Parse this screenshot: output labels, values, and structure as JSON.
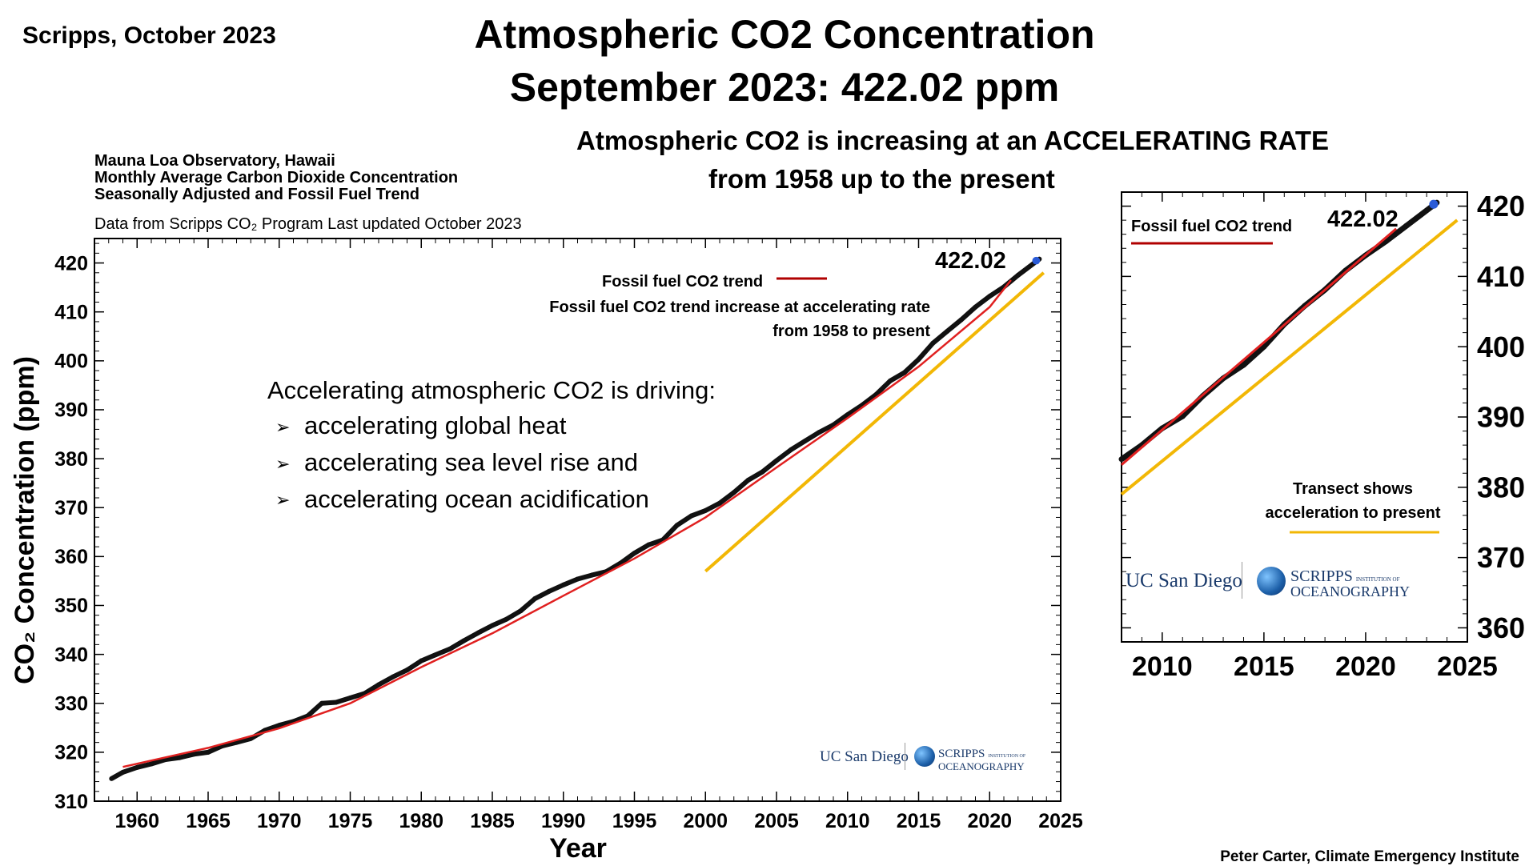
{
  "corner_label": "Scripps, October 2023",
  "title_line1": "Atmospheric CO2 Concentration",
  "title_line2": "September 2023: 422.02 ppm",
  "headline_line1": "Atmospheric CO2 is increasing at an ACCELERATING RATE",
  "headline_line2": "from 1958 up to the present",
  "chart_header": {
    "line1": "Mauna Loa Observatory, Hawaii",
    "line2": "Monthly Average Carbon Dioxide Concentration",
    "line3": "Seasonally Adjusted and Fossil Fuel Trend",
    "source": "Data from Scripps CO₂ Program   Last updated October 2023"
  },
  "credit": "Peter Carter, Climate Emergency Institute",
  "drivers": {
    "heading": "Accelerating atmospheric CO2 is driving:",
    "items": [
      "accelerating global heat",
      "accelerating sea level rise and",
      "accelerating ocean acidification"
    ]
  },
  "logos": {
    "ucsd": "UC San Diego",
    "scripps_line1": "SCRIPPS",
    "scripps_small": "INSTITUTION OF",
    "scripps_line2": "OCEANOGRAPHY"
  },
  "colors": {
    "measurements": "#111111",
    "fossil_trend": "#e02020",
    "transect": "#f2b705",
    "latest_point": "#2a5bd7",
    "legend_line": "#b00000"
  },
  "chart_data": [
    {
      "type": "line",
      "xlabel": "Year",
      "ylabel": "CO₂ Concentration (ppm)",
      "xlim": [
        1957,
        2025
      ],
      "ylim": [
        310,
        425
      ],
      "xticks": [
        1960,
        1965,
        1970,
        1975,
        1980,
        1985,
        1990,
        1995,
        2000,
        2005,
        2010,
        2015,
        2020,
        2025
      ],
      "yticks": [
        310,
        320,
        330,
        340,
        350,
        360,
        370,
        380,
        390,
        400,
        410,
        420
      ],
      "latest_label": "422.02",
      "legend": "Fossil fuel CO2 trend",
      "annotation_line1": "Fossil fuel CO2 trend increase at accelerating rate",
      "annotation_line2": "from 1958 to present",
      "series": [
        {
          "x": [
            1958.2,
            1959,
            1960,
            1961,
            1962,
            1963,
            1964,
            1965,
            1966,
            1967,
            1968,
            1969,
            1970,
            1971,
            1972,
            1973,
            1974,
            1975,
            1976,
            1977,
            1978,
            1979,
            1980,
            1981,
            1982,
            1983,
            1984,
            1985,
            1986,
            1987,
            1988,
            1989,
            1990,
            1991,
            1992,
            1993,
            1994,
            1995,
            1996,
            1997,
            1998,
            1999,
            2000,
            2001,
            2002,
            2003,
            2004,
            2005,
            2006,
            2007,
            2008,
            2009,
            2010,
            2011,
            2012,
            2013,
            2014,
            2015,
            2016,
            2017,
            2018,
            2019,
            2020,
            2021,
            2022,
            2023.5
          ],
          "y": [
            314.6,
            315.9,
            316.9,
            317.6,
            318.5,
            318.9,
            319.6,
            320.0,
            321.3,
            322.0,
            322.8,
            324.5,
            325.5,
            326.3,
            327.4,
            330.0,
            330.2,
            331.1,
            332.0,
            333.8,
            335.4,
            336.8,
            338.7,
            339.9,
            341.1,
            342.8,
            344.4,
            345.9,
            347.2,
            348.9,
            351.4,
            352.9,
            354.2,
            355.4,
            356.2,
            356.9,
            358.6,
            360.7,
            362.4,
            363.4,
            366.4,
            368.3,
            369.4,
            370.9,
            373.1,
            375.6,
            377.3,
            379.6,
            381.8,
            383.6,
            385.4,
            386.9,
            389.0,
            390.9,
            393.1,
            395.9,
            397.6,
            400.3,
            403.6,
            406.0,
            408.4,
            411.0,
            413.2,
            415.1,
            417.5,
            420.8
          ]
        },
        {
          "x": [
            1959,
            1965,
            1970,
            1975,
            1980,
            1985,
            1990,
            1995,
            2000,
            2005,
            2010,
            2015,
            2020,
            2021.5
          ],
          "y": [
            317.0,
            320.9,
            324.9,
            330.0,
            337.4,
            344.3,
            352.0,
            359.6,
            368.0,
            378.2,
            388.3,
            398.8,
            411.0,
            416.5
          ]
        },
        {
          "x": [
            2000,
            2023.8
          ],
          "y": [
            357,
            418
          ]
        }
      ]
    },
    {
      "type": "line",
      "xlim": [
        2008,
        2025
      ],
      "ylim": [
        358,
        422
      ],
      "xticks": [
        2010,
        2015,
        2020,
        2025
      ],
      "yticks": [
        360,
        370,
        380,
        390,
        400,
        410,
        420
      ],
      "latest_label": "422.02",
      "legend": "Fossil fuel CO2 trend",
      "annotation_line1": "Transect shows",
      "annotation_line2": "acceleration to present",
      "series": [
        {
          "x": [
            2008,
            2009,
            2010,
            2011,
            2012,
            2013,
            2014,
            2015,
            2016,
            2017,
            2018,
            2019,
            2020,
            2021,
            2022,
            2023.5
          ],
          "y": [
            384,
            386,
            388.4,
            390.1,
            393.0,
            395.5,
            397.4,
            400.0,
            403.2,
            405.8,
            408.1,
            410.8,
            413.0,
            415.0,
            417.2,
            420.5
          ]
        },
        {
          "x": [
            2008,
            2021.5
          ],
          "y": [
            383.2,
            416.8
          ]
        },
        {
          "x": [
            2008,
            2024.5
          ],
          "y": [
            379,
            418
          ]
        }
      ]
    }
  ]
}
